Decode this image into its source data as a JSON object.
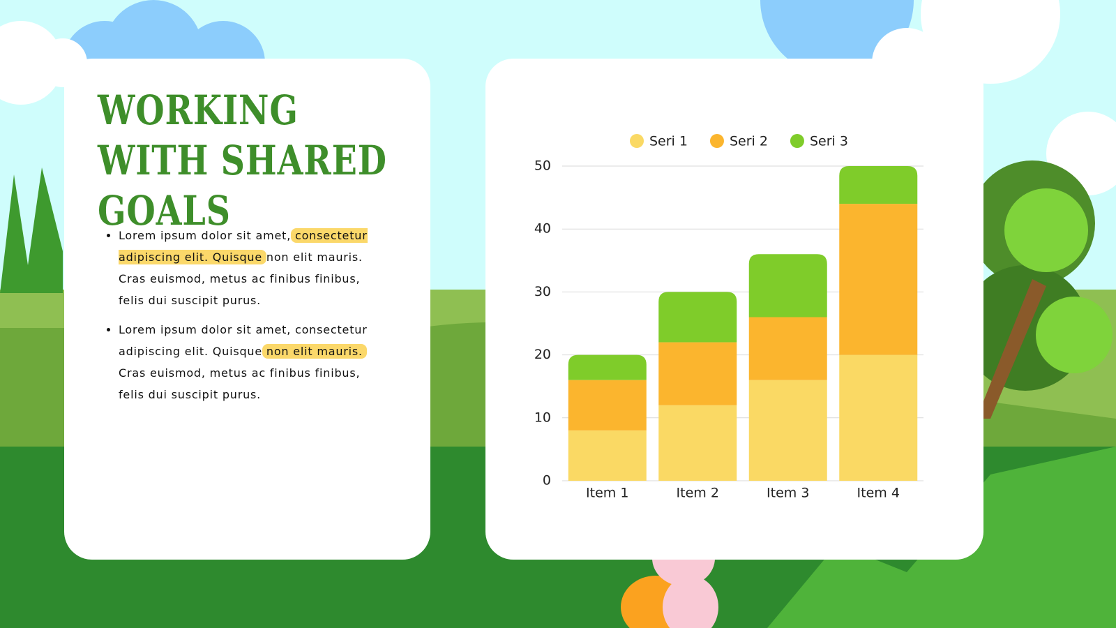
{
  "title": "WORKING WITH SHARED GOALS",
  "bullets": [
    {
      "before": "Lorem ipsum dolor sit amet, ",
      "highlight": "consectetur adipiscing elit. Quisque",
      "after": " non elit mauris. Cras euismod, metus ac finibus finibus, felis dui suscipit purus."
    },
    {
      "before": "Lorem ipsum dolor sit amet, consectetur adipiscing elit. Quisque ",
      "highlight": "non elit mauris.",
      "after": " Cras euismod, metus ac finibus finibus, felis dui suscipit purus."
    }
  ],
  "chart_data": {
    "type": "stacked_bar",
    "categories": [
      "Item 1",
      "Item 2",
      "Item 3",
      "Item 4"
    ],
    "series": [
      {
        "name": "Seri 1",
        "color": "#fad964",
        "values": [
          8,
          12,
          16,
          20
        ]
      },
      {
        "name": "Seri 2",
        "color": "#fbb52e",
        "values": [
          8,
          10,
          10,
          24
        ]
      },
      {
        "name": "Seri 3",
        "color": "#7fcc2a",
        "values": [
          4,
          8,
          10,
          6
        ]
      }
    ],
    "ylim": [
      0,
      50
    ],
    "yticks": [
      0,
      10,
      20,
      30,
      40,
      50
    ],
    "grid": true,
    "legend": "top"
  }
}
